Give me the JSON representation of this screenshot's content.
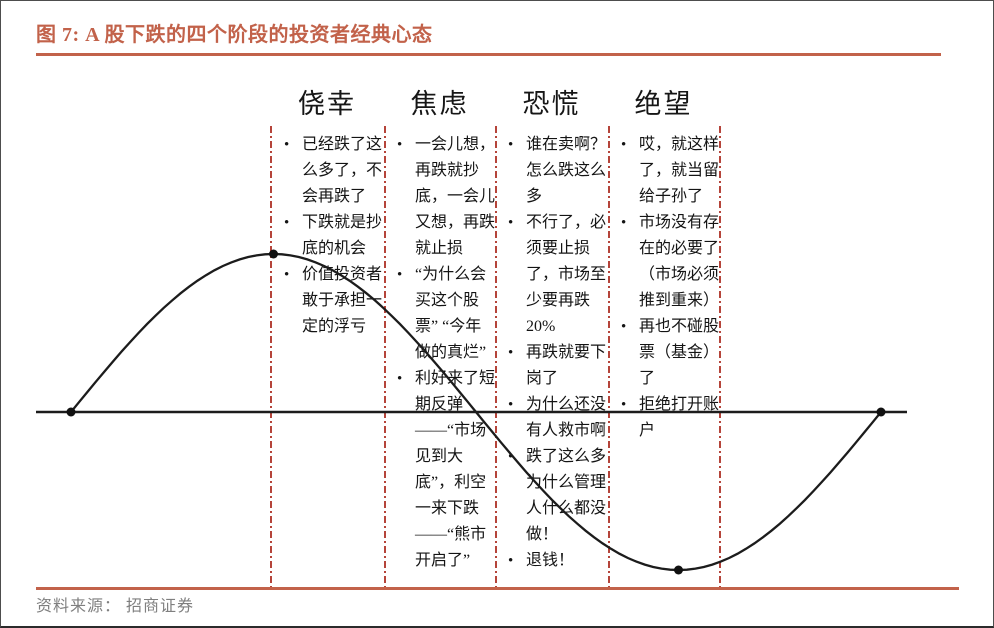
{
  "figure": {
    "title": "图 7:  A 股下跌的四个阶段的投资者经典心态",
    "source": "资料来源： 招商证券"
  },
  "stages": [
    {
      "name": "侥幸",
      "bullets": [
        "已经跌了这么多了，不会再跌了",
        "下跌就是抄底的机会",
        "价值投资者敢于承担一定的浮亏"
      ]
    },
    {
      "name": "焦虑",
      "bullets": [
        "一会儿想，再跌就抄底，一会儿又想，再跌就止损",
        "“为什么会买这个股票” “今年做的真烂”",
        "利好来了短期反弹——“市场见到大底”，利空一来下跌——“熊市开启了”"
      ]
    },
    {
      "name": "恐慌",
      "bullets": [
        "谁在卖啊？怎么跌这么多",
        "不行了，必须要止损了，市场至少要再跌20%",
        "再跌就要下岗了",
        "为什么还没有人救市啊",
        "跌了这么多为什么管理人什么都没做！",
        "退钱！"
      ]
    },
    {
      "name": "绝望",
      "bullets": [
        "哎，就这样了，就当留给子孙了",
        "市场没有存在的必要了（市场必须推到重来）",
        "再也不碰股票（基金）了",
        "拒绝打开账户"
      ]
    }
  ],
  "colors": {
    "accent_terracotta": "#c2624a",
    "divider_red": "#b5443a",
    "curve_black": "#1c1c1c",
    "source_gray": "#7f7f7f"
  }
}
